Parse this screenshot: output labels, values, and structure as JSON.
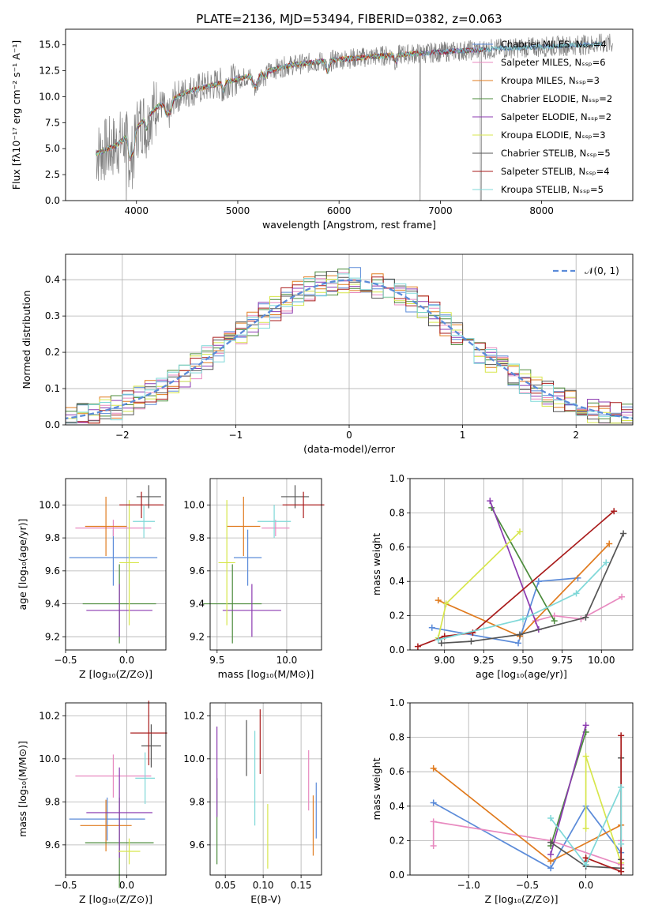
{
  "figure_title": "PLATE=2136, MJD=53494, FIBERID=0382, z=0.063",
  "colors": {
    "series": [
      "#5B8BD9",
      "#E88AC0",
      "#E07B1F",
      "#4B8B3B",
      "#8B3AB0",
      "#D7E64C",
      "#555555",
      "#A91B1B",
      "#7FD8D8"
    ]
  },
  "chart_data": [
    {
      "id": "spectrum",
      "type": "line",
      "xlabel": "wavelength [Angstrom, rest frame]",
      "ylabel": "Flux [fλ10⁻¹⁷ erg cm⁻² s⁻¹ A⁻¹]",
      "xlim": [
        3300,
        8900
      ],
      "ylim": [
        0,
        16.5
      ],
      "xticks": [
        "4000",
        "5000",
        "6000",
        "7000",
        "8000"
      ],
      "yticks": [
        "0.0",
        "2.5",
        "5.0",
        "7.5",
        "10.0",
        "12.5",
        "15.0"
      ],
      "legend_location": "right",
      "observed_color": "#808080",
      "series": [
        {
          "name": "Chabrier MILES, Nₛₛₚ=4"
        },
        {
          "name": "Salpeter MILES, Nₛₛₚ=6"
        },
        {
          "name": "Kroupa MILES, Nₛₛₚ=3"
        },
        {
          "name": "Chabrier ELODIE, Nₛₛₚ=2"
        },
        {
          "name": "Salpeter ELODIE, Nₛₛₚ=2"
        },
        {
          "name": "Kroupa ELODIE, Nₛₛₚ=3"
        },
        {
          "name": "Chabrier STELIB, Nₛₛₚ=5"
        },
        {
          "name": "Salpeter STELIB, Nₛₛₚ=4"
        },
        {
          "name": "Kroupa STELIB, Nₛₛₚ=5"
        }
      ],
      "continuum": {
        "x": [
          3600,
          3800,
          4000,
          4200,
          4500,
          5000,
          5500,
          6000,
          6500,
          7000,
          7500,
          8000,
          8600
        ],
        "y": [
          4.5,
          5.3,
          7.0,
          9.0,
          10.5,
          11.7,
          13.0,
          13.6,
          14.0,
          14.3,
          14.6,
          14.8,
          15.1
        ]
      }
    },
    {
      "id": "residuals",
      "type": "histogram",
      "xlabel": "(data-model)/error",
      "ylabel": "Normed distribution",
      "xlim": [
        -2.5,
        2.5
      ],
      "ylim": [
        0,
        0.47
      ],
      "xticks": [
        "−2",
        "−1",
        "0",
        "1",
        "2"
      ],
      "yticks": [
        "0.0",
        "0.1",
        "0.2",
        "0.3",
        "0.4"
      ],
      "legend": [
        {
          "name": "𝒩(0, 1)"
        }
      ],
      "legend_location": "top-right",
      "bin_edges_start": -2.6,
      "bin_width": 0.1,
      "bins": 52
    },
    {
      "id": "age-vs-Z",
      "type": "errorbar",
      "xlabel": "Z [log₁₀(Z/Z⊙)]",
      "ylabel": "age  [log₁₀(age/yr)]",
      "xlim": [
        -0.5,
        0.32
      ],
      "ylim": [
        9.12,
        10.16
      ],
      "xticks": [
        "−0.5",
        "0.0"
      ],
      "yticks": [
        "9.2",
        "9.4",
        "9.6",
        "9.8",
        "10.0"
      ],
      "points": [
        {
          "x": -0.11,
          "xerr": 0.36,
          "y": 9.68,
          "yerr": 0.17
        },
        {
          "x": -0.11,
          "xerr": 0.31,
          "y": 9.86,
          "yerr": 0.05
        },
        {
          "x": -0.17,
          "xerr": 0.17,
          "y": 9.87,
          "yerr": 0.18
        },
        {
          "x": -0.06,
          "xerr": 0.3,
          "y": 9.4,
          "yerr": 0.24
        },
        {
          "x": -0.06,
          "xerr": 0.27,
          "y": 9.36,
          "yerr": 0.16
        },
        {
          "x": 0.02,
          "xerr": 0.08,
          "y": 9.65,
          "yerr": 0.38
        },
        {
          "x": 0.18,
          "xerr": 0.1,
          "y": 10.05,
          "yerr": 0.07
        },
        {
          "x": 0.12,
          "xerr": 0.18,
          "y": 10.0,
          "yerr": 0.08
        },
        {
          "x": 0.14,
          "xerr": 0.09,
          "y": 9.9,
          "yerr": 0.1
        }
      ]
    },
    {
      "id": "age-vs-mass",
      "type": "errorbar",
      "xlabel": "mass [log₁₀(M/M⊙)]",
      "ylabel": "",
      "xlim": [
        9.45,
        10.25
      ],
      "ylim": [
        9.12,
        10.16
      ],
      "xticks": [
        "9.5",
        "10.0"
      ],
      "yticks": [
        "9.2",
        "9.4",
        "9.6",
        "9.8",
        "10.0"
      ],
      "points": [
        {
          "x": 9.72,
          "xerr": 0.1,
          "y": 9.68,
          "yerr": 0.17
        },
        {
          "x": 9.92,
          "xerr": 0.1,
          "y": 9.86,
          "yerr": 0.05
        },
        {
          "x": 9.69,
          "xerr": 0.12,
          "y": 9.87,
          "yerr": 0.18
        },
        {
          "x": 9.61,
          "xerr": 0.21,
          "y": 9.4,
          "yerr": 0.24
        },
        {
          "x": 9.75,
          "xerr": 0.21,
          "y": 9.36,
          "yerr": 0.16
        },
        {
          "x": 9.57,
          "xerr": 0.06,
          "y": 9.65,
          "yerr": 0.38
        },
        {
          "x": 10.06,
          "xerr": 0.1,
          "y": 10.05,
          "yerr": 0.07
        },
        {
          "x": 10.12,
          "xerr": 0.15,
          "y": 10.0,
          "yerr": 0.08
        },
        {
          "x": 9.91,
          "xerr": 0.12,
          "y": 9.9,
          "yerr": 0.1
        }
      ]
    },
    {
      "id": "mass-weight-vs-age",
      "type": "line",
      "xlabel": "age  [log₁₀(age/yr)]",
      "ylabel": "mass weight",
      "xlim": [
        8.78,
        10.2
      ],
      "ylim": [
        0,
        1
      ],
      "xticks": [
        "9.00",
        "9.25",
        "9.50",
        "9.75",
        "10.00"
      ],
      "yticks": [
        "0.0",
        "0.2",
        "0.4",
        "0.6",
        "0.8",
        "1.0"
      ],
      "series": [
        {
          "x": [
            8.92,
            9.47,
            9.6,
            9.85
          ],
          "y": [
            0.13,
            0.04,
            0.4,
            0.42
          ]
        },
        {
          "x": [
            9.58,
            9.7,
            9.87,
            10.13
          ],
          "y": [
            0.17,
            0.2,
            0.18,
            0.31
          ]
        },
        {
          "x": [
            8.96,
            9.48,
            10.05
          ],
          "y": [
            0.29,
            0.08,
            0.62
          ]
        },
        {
          "x": [
            9.3,
            9.7
          ],
          "y": [
            0.83,
            0.17
          ]
        },
        {
          "x": [
            9.29,
            9.6
          ],
          "y": [
            0.87,
            0.12
          ]
        },
        {
          "x": [
            8.96,
            9.01,
            9.48
          ],
          "y": [
            0.07,
            0.27,
            0.69
          ]
        },
        {
          "x": [
            8.98,
            9.17,
            9.48,
            9.9,
            10.14
          ],
          "y": [
            0.04,
            0.05,
            0.09,
            0.19,
            0.68
          ]
        },
        {
          "x": [
            8.83,
            9.0,
            9.18,
            10.08
          ],
          "y": [
            0.02,
            0.08,
            0.1,
            0.81
          ]
        },
        {
          "x": [
            8.96,
            9.5,
            9.84,
            10.03
          ],
          "y": [
            0.06,
            0.18,
            0.33,
            0.51
          ]
        }
      ]
    },
    {
      "id": "mass-vs-Z",
      "type": "errorbar",
      "xlabel": "Z [log₁₀(Z/Z⊙)]",
      "ylabel": "mass [log₁₀(M/M⊙)]",
      "xlim": [
        -0.5,
        0.32
      ],
      "ylim": [
        9.46,
        10.26
      ],
      "xticks": [
        "−0.5",
        "0.0"
      ],
      "yticks": [
        "9.6",
        "9.8",
        "10.0",
        "10.2"
      ],
      "points": [
        {
          "x": -0.16,
          "xerr": 0.31,
          "y": 9.72,
          "yerr": 0.1
        },
        {
          "x": -0.11,
          "xerr": 0.31,
          "y": 9.92,
          "yerr": 0.1
        },
        {
          "x": -0.17,
          "xerr": 0.21,
          "y": 9.69,
          "yerr": 0.12
        },
        {
          "x": -0.06,
          "xerr": 0.28,
          "y": 9.61,
          "yerr": 0.21
        },
        {
          "x": -0.06,
          "xerr": 0.27,
          "y": 9.75,
          "yerr": 0.21
        },
        {
          "x": 0.02,
          "xerr": 0.09,
          "y": 9.57,
          "yerr": 0.06
        },
        {
          "x": 0.2,
          "xerr": 0.08,
          "y": 10.06,
          "yerr": 0.1
        },
        {
          "x": 0.18,
          "xerr": 0.15,
          "y": 10.12,
          "yerr": 0.15
        },
        {
          "x": 0.15,
          "xerr": 0.08,
          "y": 9.91,
          "yerr": 0.12
        }
      ]
    },
    {
      "id": "mass-vs-ebv",
      "type": "errorbar",
      "xlabel": "E(B-V)",
      "ylabel": "",
      "xlim": [
        0.03,
        0.177
      ],
      "ylim": [
        9.46,
        10.26
      ],
      "xticks": [
        "0.05",
        "0.10",
        "0.15"
      ],
      "yticks": [
        "9.6",
        "9.8",
        "10.0",
        "10.2"
      ],
      "points": [
        {
          "x": 0.17,
          "xerr": 0,
          "y": 9.76,
          "yerr": 0.13
        },
        {
          "x": 0.16,
          "xerr": 0,
          "y": 9.9,
          "yerr": 0.14
        },
        {
          "x": 0.166,
          "xerr": 0,
          "y": 9.69,
          "yerr": 0.14
        },
        {
          "x": 0.039,
          "xerr": 0,
          "y": 9.71,
          "yerr": 0.2
        },
        {
          "x": 0.039,
          "xerr": 0,
          "y": 9.94,
          "yerr": 0.21
        },
        {
          "x": 0.106,
          "xerr": 0,
          "y": 9.64,
          "yerr": 0.15
        },
        {
          "x": 0.078,
          "xerr": 0,
          "y": 10.05,
          "yerr": 0.13
        },
        {
          "x": 0.096,
          "xerr": 0,
          "y": 10.08,
          "yerr": 0.15
        },
        {
          "x": 0.089,
          "xerr": 0,
          "y": 9.91,
          "yerr": 0.22
        }
      ]
    },
    {
      "id": "mass-weight-vs-Z",
      "type": "line",
      "xlabel": "Z [log₁₀(Z/Z⊙)]",
      "ylabel": "mass weight",
      "xlim": [
        -1.5,
        0.4
      ],
      "ylim": [
        0,
        1
      ],
      "xticks": [
        "−1.0",
        "−0.5",
        "0.0"
      ],
      "yticks": [
        "0.0",
        "0.2",
        "0.4",
        "0.6",
        "0.8",
        "1.0"
      ],
      "series": [
        {
          "x": [
            -1.3,
            -0.3,
            0.0,
            0.3
          ],
          "y": [
            0.42,
            0.04,
            0.4,
            0.13
          ]
        },
        {
          "x": [
            -1.3,
            -1.3,
            -0.3,
            0.3,
            0.3
          ],
          "y": [
            0.17,
            0.31,
            0.2,
            0.06,
            0.2
          ]
        },
        {
          "x": [
            -1.3,
            -0.3,
            0.3
          ],
          "y": [
            0.62,
            0.08,
            0.29
          ]
        },
        {
          "x": [
            -0.3,
            0.0
          ],
          "y": [
            0.17,
            0.83
          ]
        },
        {
          "x": [
            -0.3,
            0.0
          ],
          "y": [
            0.12,
            0.87
          ]
        },
        {
          "x": [
            0.0,
            0.0,
            0.3
          ],
          "y": [
            0.27,
            0.69,
            0.07
          ]
        },
        {
          "x": [
            -0.3,
            0.0,
            0.3,
            0.3,
            0.3
          ],
          "y": [
            0.19,
            0.05,
            0.04,
            0.09,
            0.68
          ]
        },
        {
          "x": [
            0.0,
            0.0,
            0.3,
            0.3
          ],
          "y": [
            0.08,
            0.1,
            0.02,
            0.81
          ]
        },
        {
          "x": [
            -0.3,
            0.0,
            0.3,
            0.3
          ],
          "y": [
            0.33,
            0.06,
            0.51,
            0.18
          ]
        }
      ]
    }
  ]
}
